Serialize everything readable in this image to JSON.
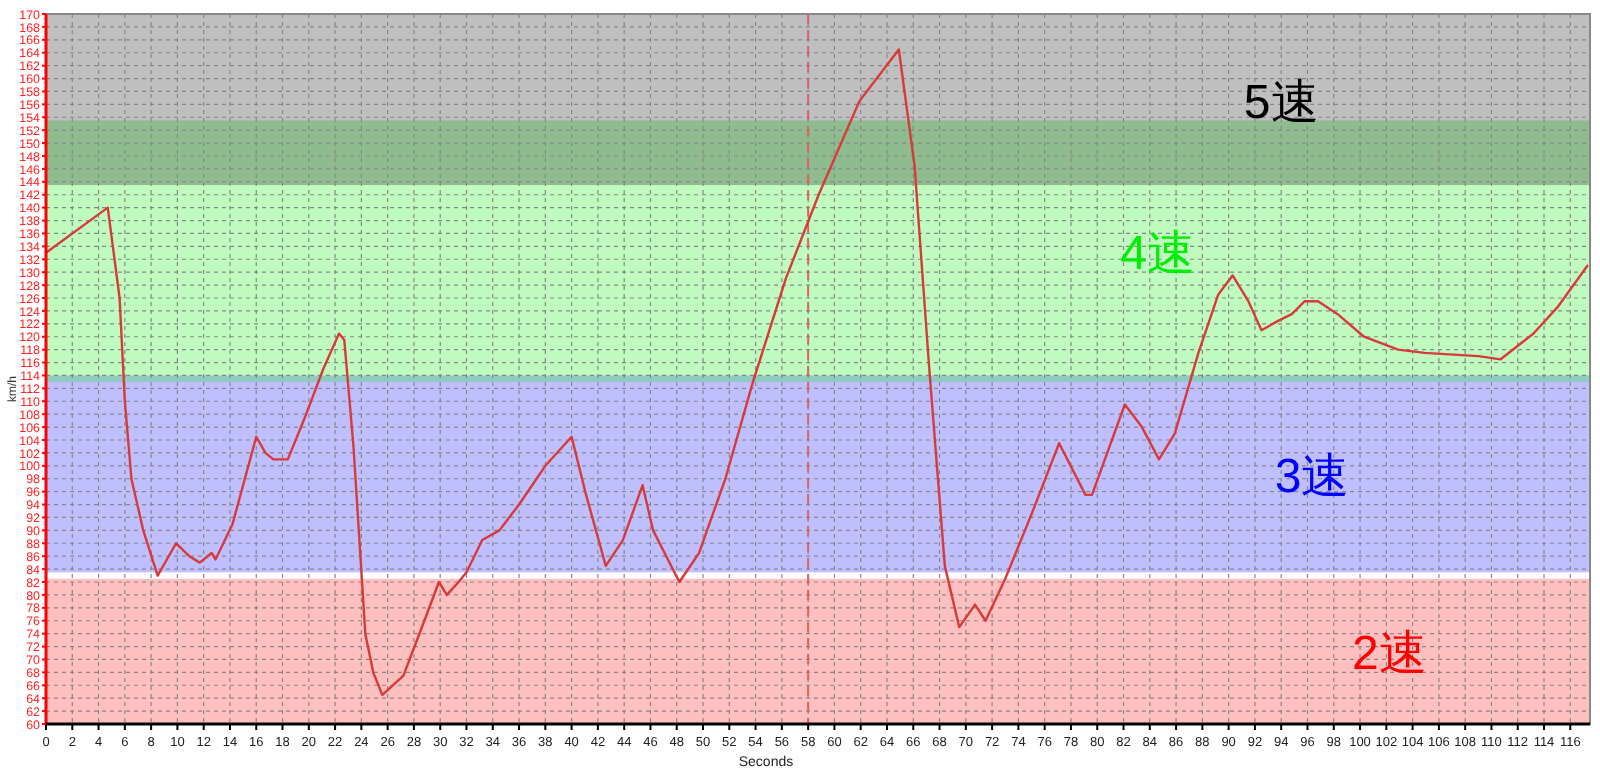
{
  "chart_data": {
    "type": "line",
    "xlabel": "Seconds",
    "ylabel": "km/h",
    "xlim": [
      0,
      117.5
    ],
    "ylim": [
      60,
      170
    ],
    "xticks": [
      0,
      2,
      4,
      6,
      8,
      10,
      12,
      14,
      16,
      18,
      20,
      22,
      24,
      26,
      28,
      30,
      32,
      34,
      36,
      38,
      40,
      42,
      44,
      46,
      48,
      50,
      52,
      54,
      56,
      58,
      60,
      62,
      64,
      66,
      68,
      70,
      72,
      74,
      76,
      78,
      80,
      82,
      84,
      86,
      88,
      90,
      92,
      94,
      96,
      98,
      100,
      102,
      104,
      106,
      108,
      110,
      112,
      114,
      116
    ],
    "yticks": [
      60,
      62,
      64,
      66,
      68,
      70,
      72,
      74,
      76,
      78,
      80,
      82,
      84,
      86,
      88,
      90,
      92,
      94,
      96,
      98,
      100,
      102,
      104,
      106,
      108,
      110,
      112,
      114,
      116,
      118,
      120,
      122,
      124,
      126,
      128,
      130,
      132,
      134,
      136,
      138,
      140,
      142,
      144,
      146,
      148,
      150,
      152,
      154,
      156,
      158,
      160,
      162,
      164,
      166,
      168,
      170
    ],
    "grid": true,
    "line_style": "solid",
    "marker": "none",
    "bands": [
      {
        "axis": "y",
        "from": 60,
        "to": 82.5,
        "label": "2速",
        "color": "#ff0000"
      },
      {
        "axis": "y",
        "from": 83.5,
        "to": 114,
        "label": "3速",
        "color": "#0000ff"
      },
      {
        "axis": "y",
        "from": 113,
        "to": 153.5,
        "label": "4速",
        "color": "#00ee00"
      },
      {
        "axis": "y",
        "from": 143.5,
        "to": 170,
        "label": "5速",
        "color": "#000000"
      }
    ],
    "ref_lines": [
      {
        "axis": "x",
        "value": 58,
        "color": "#e06060",
        "line_style": "dashed"
      }
    ],
    "series": [
      {
        "color": "#d83a3a",
        "x": [
          0,
          4.7,
          5.6,
          6,
          6.5,
          7.4,
          8.5,
          9.9,
          10.9,
          11.7,
          12.6,
          12.9,
          14.2,
          16,
          16.7,
          17.3,
          18.4,
          19.8,
          21.1,
          22.3,
          22.7,
          23.4,
          24.3,
          24.9,
          25.6,
          27.2,
          28.7,
          29.9,
          30.5,
          31.4,
          32,
          33.2,
          34.5,
          36,
          38,
          40,
          41.1,
          42.6,
          43.9,
          45.4,
          46.2,
          48.2,
          49.7,
          51.7,
          53.8,
          56.3,
          58.8,
          61.9,
          64.9,
          66.1,
          67.2,
          68.4,
          69.5,
          70.7,
          71.5,
          73,
          75,
          77.1,
          79.1,
          79.6,
          82.1,
          83.4,
          84.7,
          85.9,
          87.7,
          89.2,
          90.3,
          91.5,
          92.5,
          93.8,
          94.8,
          95.8,
          96.8,
          98.3,
          100.3,
          102.9,
          104.9,
          109,
          110.7,
          113.2,
          115,
          117.3
        ],
        "values": [
          133,
          140,
          126,
          110,
          98,
          90,
          83,
          88,
          86,
          85,
          86.5,
          85.5,
          91,
          104.5,
          102,
          101,
          101,
          108,
          115,
          120.5,
          119.5,
          103,
          74,
          68,
          64.5,
          67.5,
          75.5,
          82,
          80,
          82,
          83.5,
          88.5,
          90,
          94,
          100,
          104.5,
          95.5,
          84.5,
          88.5,
          97,
          90,
          82,
          86.5,
          98,
          113,
          129,
          142,
          156.5,
          164.5,
          146.5,
          115.5,
          84.5,
          75,
          78.5,
          76,
          82.5,
          92.5,
          103.5,
          95.5,
          95.5,
          109.5,
          106,
          101,
          105,
          117.5,
          126.5,
          129.5,
          125.5,
          121,
          122.5,
          123.5,
          125.5,
          125.5,
          123.5,
          120,
          118,
          117.5,
          117,
          116.5,
          120.5,
          124.5,
          131
        ]
      }
    ]
  }
}
